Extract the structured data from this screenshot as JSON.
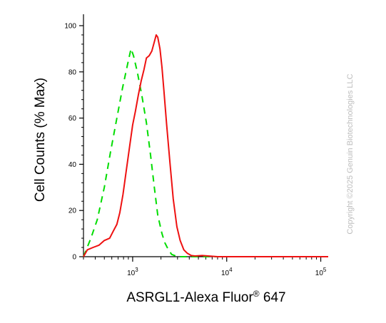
{
  "chart_data": {
    "type": "line",
    "title": "",
    "xlabel": "ASRGL1-Alexa Fluor® 647",
    "ylabel": "Cell Counts (% Max)",
    "x_scale": "log",
    "xlim": [
      300,
      120000
    ],
    "ylim": [
      0,
      100
    ],
    "x_major_ticks": [
      {
        "value": 1000,
        "base": "10",
        "exp": "3"
      },
      {
        "value": 10000,
        "base": "10",
        "exp": "4"
      },
      {
        "value": 100000,
        "base": "10",
        "exp": "5"
      }
    ],
    "y_ticks": [
      0,
      20,
      40,
      60,
      80,
      100
    ],
    "y_tick_labels": [
      "0",
      "20",
      "40",
      "60",
      "80",
      "100"
    ],
    "grid": false,
    "legend": "none",
    "series": [
      {
        "color": "#00dd00",
        "style": "dashed",
        "x": [
          300,
          360,
          420,
          500,
          580,
          680,
          780,
          880,
          960,
          1020,
          1120,
          1250,
          1400,
          1550,
          1700,
          1850,
          2050,
          2200,
          2400,
          2600,
          3000,
          4000,
          10000,
          100000,
          120000
        ],
        "y": [
          0,
          8,
          16,
          30,
          45,
          60,
          73,
          83,
          90,
          87,
          80,
          70,
          58,
          44,
          30,
          18,
          10,
          6,
          3,
          1,
          0,
          0,
          0,
          0,
          0
        ]
      },
      {
        "color": "#ee1111",
        "style": "solid",
        "x": [
          300,
          330,
          380,
          440,
          500,
          570,
          620,
          680,
          730,
          790,
          860,
          930,
          1000,
          1070,
          1150,
          1230,
          1320,
          1400,
          1500,
          1600,
          1700,
          1780,
          1850,
          1950,
          2050,
          2150,
          2300,
          2500,
          2700,
          2950,
          3200,
          3500,
          3800,
          4200,
          4600,
          5500,
          8000,
          30000,
          120000
        ],
        "y": [
          0,
          3,
          4,
          5,
          7,
          8,
          11,
          14,
          19,
          27,
          38,
          48,
          57,
          63,
          70,
          76,
          81,
          86,
          87,
          89,
          93,
          96,
          95,
          90,
          82,
          72,
          57,
          40,
          25,
          13,
          7,
          3,
          1.5,
          0.5,
          0.3,
          0.5,
          0,
          0,
          0
        ]
      }
    ]
  },
  "copyright": "Copyright ©2025 Genuin Biotechnologies LLC"
}
